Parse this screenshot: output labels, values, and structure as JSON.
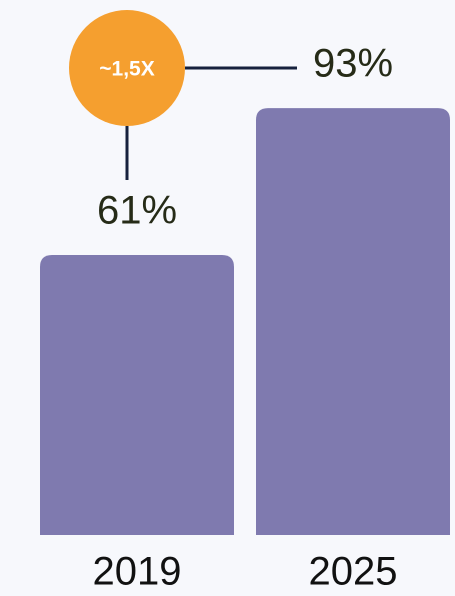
{
  "chart_data": {
    "type": "bar",
    "categories": [
      "2019",
      "2025"
    ],
    "values": [
      61,
      93
    ],
    "value_labels": [
      "61%",
      "93%"
    ],
    "color": "#7f7aaf",
    "annotation": {
      "text": "~1,5X",
      "color": "#f59f2f"
    }
  }
}
